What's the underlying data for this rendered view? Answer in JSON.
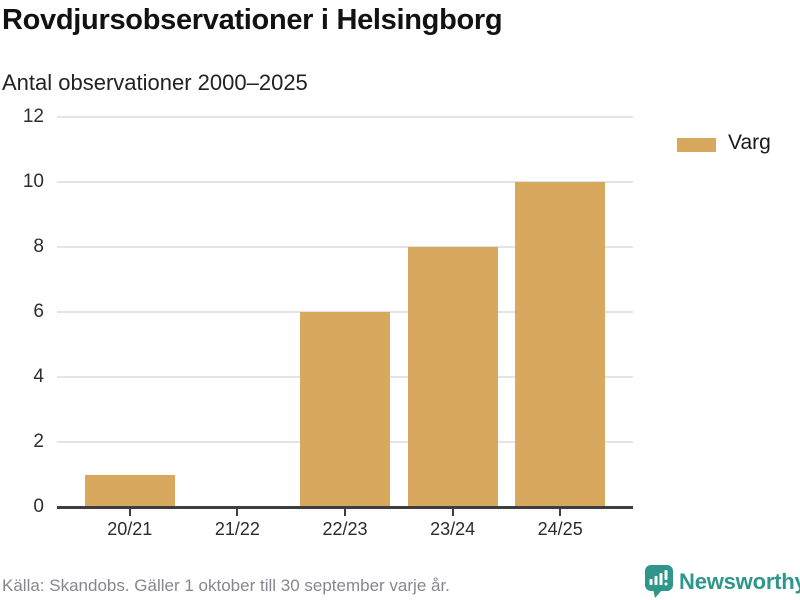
{
  "chart_data": {
    "type": "bar",
    "title": "Rovdjursobservationer i Helsingborg",
    "subtitle": "Antal observationer 2000–2025",
    "categories": [
      "20/21",
      "21/22",
      "22/23",
      "23/24",
      "24/25"
    ],
    "series": [
      {
        "name": "Varg",
        "values": [
          1,
          0,
          6,
          8,
          10
        ],
        "color": "#d8a85f"
      }
    ],
    "xlabel": "",
    "ylabel": "",
    "ylim": [
      0,
      12
    ],
    "yticks": [
      0,
      2,
      4,
      6,
      8,
      10,
      12
    ],
    "grid": true,
    "legend_position": "right"
  },
  "legend": {
    "items": [
      {
        "label": "Varg",
        "color": "#d8a85f"
      }
    ]
  },
  "footer": {
    "source": "Källa: Skandobs. Gäller 1 oktober till 30 september varje år.",
    "brand_name": "Newsworthy",
    "brand_color": "#2f968c",
    "brand_icon": "bar-chart-speech-bubble-icon"
  },
  "colors": {
    "bar": "#d8a85f",
    "axis": "#3e3e3e",
    "gridline": "#e4e4e4",
    "teal": "#2f968c",
    "footer_text": "#86868f"
  }
}
